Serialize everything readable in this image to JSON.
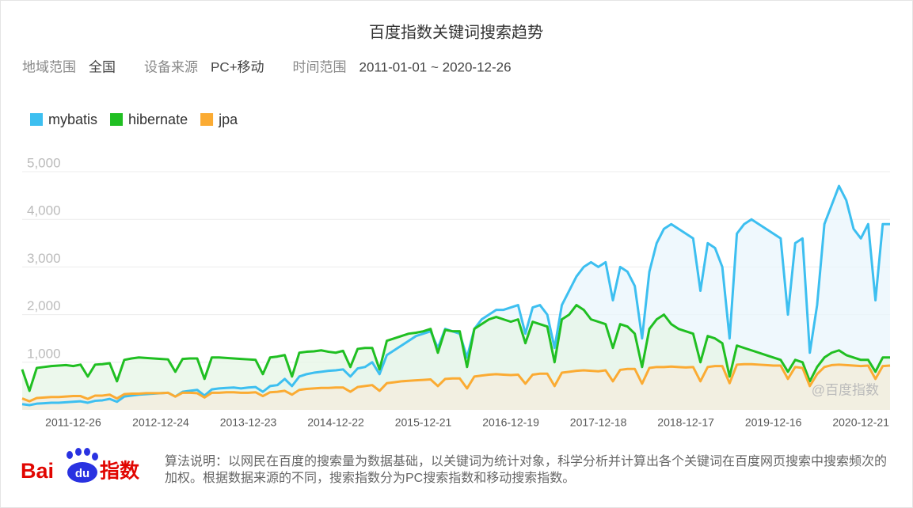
{
  "chart_data": {
    "type": "line",
    "title": "百度指数关键词搜索趋势",
    "categories": [
      null,
      null,
      null,
      null,
      null,
      null,
      null,
      "2011-12-26",
      null,
      null,
      null,
      null,
      null,
      null,
      null,
      null,
      null,
      null,
      null,
      "2012-12-24",
      null,
      null,
      null,
      null,
      null,
      null,
      null,
      null,
      null,
      null,
      null,
      "2013-12-23",
      null,
      null,
      null,
      null,
      null,
      null,
      null,
      null,
      null,
      null,
      null,
      "2014-12-22",
      null,
      null,
      null,
      null,
      null,
      null,
      null,
      null,
      null,
      null,
      null,
      "2015-12-21",
      null,
      null,
      null,
      null,
      null,
      null,
      null,
      null,
      null,
      null,
      null,
      "2016-12-19",
      null,
      null,
      null,
      null,
      null,
      null,
      null,
      null,
      null,
      null,
      null,
      "2017-12-18",
      null,
      null,
      null,
      null,
      null,
      null,
      null,
      null,
      null,
      null,
      null,
      "2018-12-17",
      null,
      null,
      null,
      null,
      null,
      null,
      null,
      null,
      null,
      null,
      null,
      "2019-12-16",
      null,
      null,
      null,
      null,
      null,
      null,
      null,
      null,
      null,
      null,
      null,
      "2020-12-21",
      null,
      null,
      null,
      null
    ],
    "series": [
      {
        "name": "mybatis",
        "color": "#3dbff0",
        "fill": "#eaf5fc",
        "values": [
          120,
          100,
          130,
          140,
          150,
          150,
          160,
          170,
          180,
          150,
          190,
          200,
          230,
          170,
          280,
          300,
          320,
          330,
          340,
          350,
          360,
          280,
          380,
          400,
          420,
          300,
          430,
          450,
          460,
          470,
          450,
          470,
          480,
          380,
          500,
          520,
          650,
          500,
          700,
          750,
          780,
          800,
          820,
          830,
          850,
          700,
          870,
          900,
          1000,
          750,
          1150,
          1250,
          1350,
          1450,
          1550,
          1600,
          1650,
          1300,
          1700,
          1650,
          1600,
          1100,
          1700,
          1900,
          2000,
          2100,
          2100,
          2150,
          2200,
          1600,
          2150,
          2200,
          2000,
          1300,
          2200,
          2500,
          2800,
          3000,
          3100,
          3000,
          3100,
          2300,
          3000,
          2900,
          2600,
          1500,
          2900,
          3500,
          3800,
          3900,
          3800,
          3700,
          3600,
          2500,
          3500,
          3400,
          3000,
          1500,
          3700,
          3900,
          4000,
          3900,
          3800,
          3700,
          3600,
          2000,
          3500,
          3600,
          1200,
          2200,
          3900,
          4300,
          4700,
          4400,
          3800,
          3600,
          3900,
          2300,
          3900,
          3900
        ]
      },
      {
        "name": "hibernate",
        "color": "#20bf22",
        "fill": "#e6f5e6",
        "values": [
          850,
          400,
          880,
          900,
          920,
          930,
          940,
          920,
          950,
          700,
          950,
          960,
          980,
          600,
          1050,
          1080,
          1100,
          1090,
          1080,
          1070,
          1060,
          800,
          1070,
          1080,
          1080,
          650,
          1100,
          1100,
          1090,
          1080,
          1070,
          1060,
          1050,
          750,
          1100,
          1120,
          1150,
          700,
          1200,
          1220,
          1230,
          1250,
          1220,
          1200,
          1240,
          900,
          1280,
          1300,
          1300,
          850,
          1450,
          1500,
          1550,
          1600,
          1620,
          1650,
          1700,
          1200,
          1680,
          1650,
          1650,
          900,
          1700,
          1800,
          1900,
          1950,
          1900,
          1850,
          1900,
          1400,
          1850,
          1800,
          1750,
          1000,
          1900,
          2000,
          2200,
          2100,
          1900,
          1850,
          1800,
          1300,
          1800,
          1750,
          1600,
          900,
          1700,
          1900,
          2000,
          1800,
          1700,
          1650,
          1600,
          1000,
          1550,
          1500,
          1400,
          700,
          1350,
          1300,
          1250,
          1200,
          1150,
          1100,
          1050,
          800,
          1050,
          1000,
          600,
          900,
          1100,
          1200,
          1250,
          1150,
          1100,
          1050,
          1050,
          800,
          1100,
          1100
        ]
      },
      {
        "name": "jpa",
        "color": "#fbab33",
        "fill": "#f5ecde",
        "values": [
          240,
          180,
          250,
          260,
          270,
          270,
          280,
          290,
          290,
          230,
          300,
          300,
          320,
          240,
          330,
          340,
          340,
          350,
          350,
          350,
          360,
          280,
          360,
          360,
          350,
          260,
          360,
          360,
          370,
          370,
          360,
          360,
          370,
          290,
          370,
          380,
          400,
          320,
          420,
          440,
          450,
          460,
          460,
          470,
          470,
          380,
          480,
          500,
          520,
          400,
          560,
          580,
          600,
          610,
          620,
          630,
          640,
          500,
          650,
          660,
          660,
          450,
          700,
          720,
          740,
          750,
          740,
          730,
          740,
          550,
          740,
          760,
          760,
          500,
          780,
          800,
          820,
          830,
          820,
          810,
          830,
          600,
          840,
          860,
          860,
          550,
          880,
          900,
          900,
          910,
          900,
          890,
          900,
          600,
          900,
          920,
          920,
          560,
          950,
          960,
          960,
          950,
          940,
          930,
          930,
          650,
          900,
          880,
          500,
          750,
          900,
          940,
          950,
          940,
          930,
          920,
          930,
          650,
          920,
          930
        ]
      }
    ],
    "ylim": [
      0,
      5000
    ],
    "yticks": [
      {
        "value": 1000,
        "label": "1,000"
      },
      {
        "value": 2000,
        "label": "2,000"
      },
      {
        "value": 3000,
        "label": "3,000"
      },
      {
        "value": 4000,
        "label": "4,000"
      },
      {
        "value": 5000,
        "label": "5,000"
      }
    ],
    "grid": true,
    "legend": "top-left",
    "watermark": "@百度指数"
  },
  "filters": [
    {
      "label": "地域范围",
      "value": "全国"
    },
    {
      "label": "设备来源",
      "value": "PC+移动"
    },
    {
      "label": "时间范围",
      "value": "2011-01-01 ~ 2020-12-26"
    }
  ],
  "logo": {
    "bai": "Bai",
    "du": "du",
    "zhishu": "指数"
  },
  "description": "算法说明：以网民在百度的搜索量为数据基础，以关键词为统计对象，科学分析并计算出各个关键词在百度网页搜索中搜索频次的加权。根据数据来源的不同，搜索指数分为PC搜索指数和移动搜索指数。"
}
